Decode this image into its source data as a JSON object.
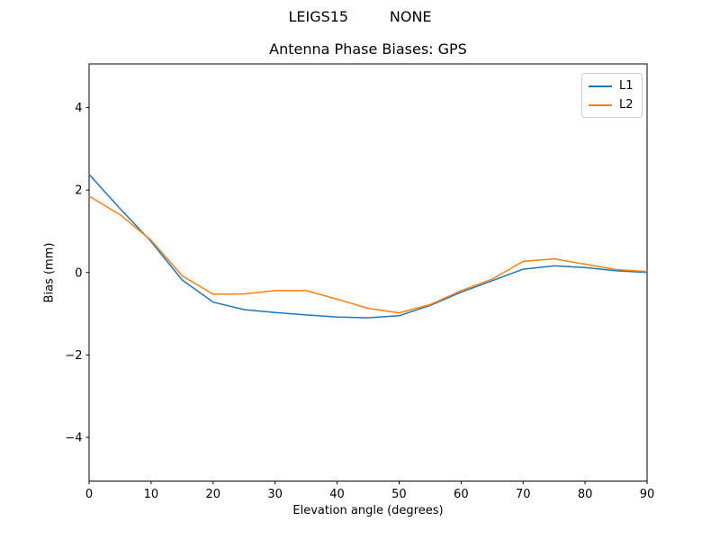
{
  "figure": {
    "suptitle": "LEIGS15         NONE"
  },
  "chart_data": {
    "type": "line",
    "title": "Antenna Phase Biases: GPS",
    "xlabel": "Elevation angle (degrees)",
    "ylabel": "Bias (mm)",
    "xlim": [
      0,
      90
    ],
    "ylim": [
      -5.06,
      5.06
    ],
    "xticks": [
      0,
      10,
      20,
      30,
      40,
      50,
      60,
      70,
      80,
      90
    ],
    "yticks": [
      -4,
      -2,
      0,
      2,
      4
    ],
    "grid": false,
    "legend": {
      "position": "upper right"
    },
    "x": [
      0,
      5,
      10,
      15,
      20,
      25,
      30,
      35,
      40,
      45,
      50,
      55,
      60,
      65,
      70,
      75,
      80,
      85,
      90
    ],
    "series": [
      {
        "name": "L1",
        "color": "#1f77b4",
        "values": [
          2.38,
          1.55,
          0.75,
          -0.18,
          -0.72,
          -0.9,
          -0.97,
          -1.03,
          -1.08,
          -1.1,
          -1.05,
          -0.8,
          -0.48,
          -0.2,
          0.08,
          0.16,
          0.12,
          0.04,
          0.0
        ]
      },
      {
        "name": "L2",
        "color": "#ff7f0e",
        "values": [
          1.85,
          1.4,
          0.78,
          -0.08,
          -0.53,
          -0.52,
          -0.44,
          -0.44,
          -0.65,
          -0.87,
          -0.98,
          -0.78,
          -0.44,
          -0.16,
          0.27,
          0.33,
          0.2,
          0.07,
          0.02
        ]
      }
    ]
  }
}
